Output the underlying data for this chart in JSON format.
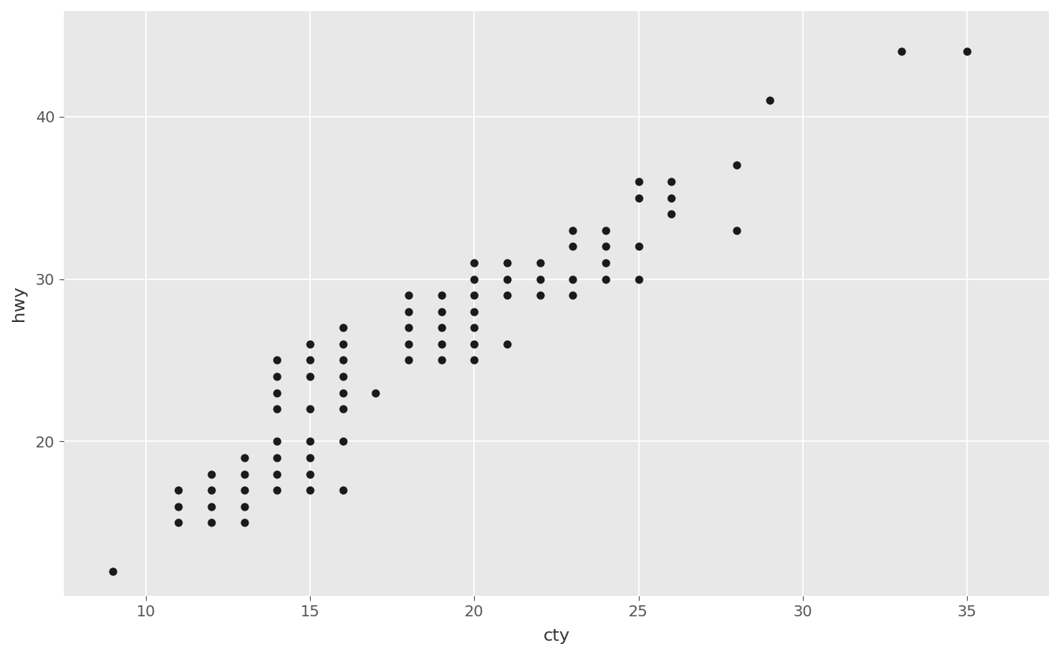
{
  "points": [
    [
      9,
      12
    ],
    [
      11,
      15
    ],
    [
      11,
      16
    ],
    [
      11,
      17
    ],
    [
      12,
      15
    ],
    [
      12,
      16
    ],
    [
      12,
      17
    ],
    [
      12,
      18
    ],
    [
      13,
      15
    ],
    [
      13,
      16
    ],
    [
      13,
      17
    ],
    [
      13,
      18
    ],
    [
      13,
      19
    ],
    [
      14,
      17
    ],
    [
      14,
      18
    ],
    [
      14,
      19
    ],
    [
      14,
      20
    ],
    [
      14,
      22
    ],
    [
      14,
      23
    ],
    [
      14,
      24
    ],
    [
      14,
      25
    ],
    [
      15,
      17
    ],
    [
      15,
      18
    ],
    [
      15,
      19
    ],
    [
      15,
      20
    ],
    [
      15,
      22
    ],
    [
      15,
      24
    ],
    [
      15,
      25
    ],
    [
      15,
      26
    ],
    [
      16,
      17
    ],
    [
      16,
      20
    ],
    [
      16,
      22
    ],
    [
      16,
      23
    ],
    [
      16,
      24
    ],
    [
      16,
      25
    ],
    [
      16,
      26
    ],
    [
      16,
      27
    ],
    [
      17,
      23
    ],
    [
      18,
      25
    ],
    [
      18,
      26
    ],
    [
      18,
      27
    ],
    [
      18,
      28
    ],
    [
      18,
      29
    ],
    [
      19,
      25
    ],
    [
      19,
      26
    ],
    [
      19,
      27
    ],
    [
      19,
      28
    ],
    [
      19,
      29
    ],
    [
      20,
      25
    ],
    [
      20,
      26
    ],
    [
      20,
      27
    ],
    [
      20,
      28
    ],
    [
      20,
      29
    ],
    [
      20,
      30
    ],
    [
      20,
      31
    ],
    [
      21,
      26
    ],
    [
      21,
      29
    ],
    [
      21,
      30
    ],
    [
      21,
      31
    ],
    [
      22,
      29
    ],
    [
      22,
      30
    ],
    [
      22,
      31
    ],
    [
      23,
      29
    ],
    [
      23,
      30
    ],
    [
      23,
      32
    ],
    [
      23,
      33
    ],
    [
      24,
      30
    ],
    [
      24,
      31
    ],
    [
      24,
      32
    ],
    [
      24,
      33
    ],
    [
      25,
      30
    ],
    [
      25,
      32
    ],
    [
      25,
      35
    ],
    [
      25,
      36
    ],
    [
      26,
      34
    ],
    [
      26,
      35
    ],
    [
      26,
      36
    ],
    [
      28,
      33
    ],
    [
      28,
      37
    ],
    [
      29,
      41
    ],
    [
      33,
      44
    ],
    [
      35,
      44
    ]
  ],
  "xlabel": "cty",
  "ylabel": "hwy",
  "xlim": [
    7.5,
    37.5
  ],
  "ylim": [
    10.5,
    46.5
  ],
  "xticks": [
    10,
    15,
    20,
    25,
    30,
    35
  ],
  "yticks": [
    20,
    30,
    40
  ],
  "point_color": "#1a1a1a",
  "point_size": 55,
  "bg_color": "#E8E8E8",
  "grid_color": "#FFFFFF",
  "figure_bg": "#FFFFFF",
  "tick_label_size": 14,
  "axis_label_size": 16
}
